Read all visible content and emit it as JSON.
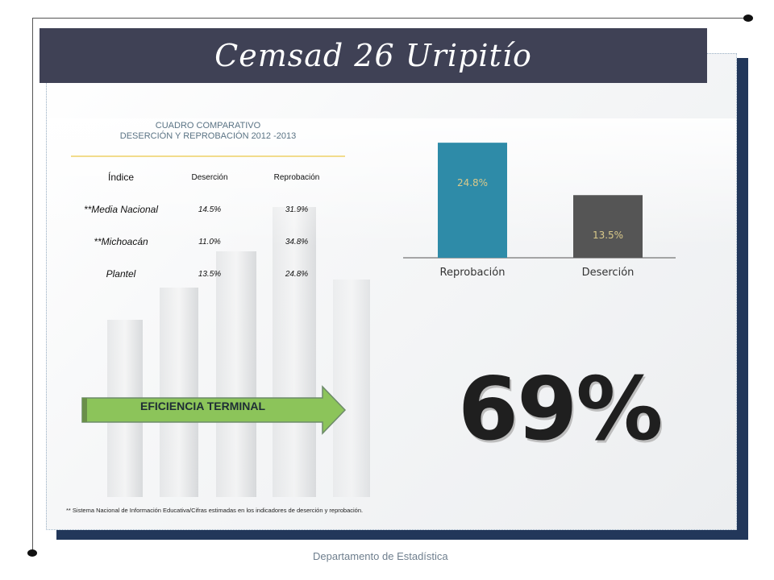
{
  "slide": {
    "title": "Cemsad 26 Uripitío",
    "table_title_line1": "CUADRO COMPARATIVO",
    "table_title_line2": "DESERCIÓN Y REPROBACIÓN  2012 -2013",
    "table_headers": [
      "Índice",
      "Deserción",
      "Reprobación"
    ],
    "table_rows": [
      [
        "**Media Nacional",
        "14.5%",
        "31.9%"
      ],
      [
        "**Michoacán",
        "11.0%",
        "34.8%"
      ],
      [
        "Plantel",
        "13.5%",
        "24.8%"
      ]
    ],
    "arrow_label": "EFICIENCIA TERMINAL",
    "big_percent": "69%",
    "footnote": "** Sistema Nacional de Información Educativa/Cifras estimadas en los indicadores de deserción y reprobación.",
    "footer": "Departamento de Estadística"
  },
  "colors": {
    "title_bar": "#3f4155",
    "bar_reprobacion": "#2e8ba8",
    "bar_desercion": "#555555",
    "bar_label": "#d9c98a",
    "arrow_fill": "#8cc45a",
    "frame_shadow": "#22375a"
  },
  "chart_data": {
    "type": "bar",
    "categories": [
      "Reprobación",
      "Deserción"
    ],
    "values": [
      24.8,
      13.5
    ],
    "value_labels": [
      "24.8%",
      "13.5%"
    ],
    "ylim": [
      0,
      25
    ],
    "grid": false,
    "title": "",
    "xlabel": "",
    "ylabel": ""
  }
}
